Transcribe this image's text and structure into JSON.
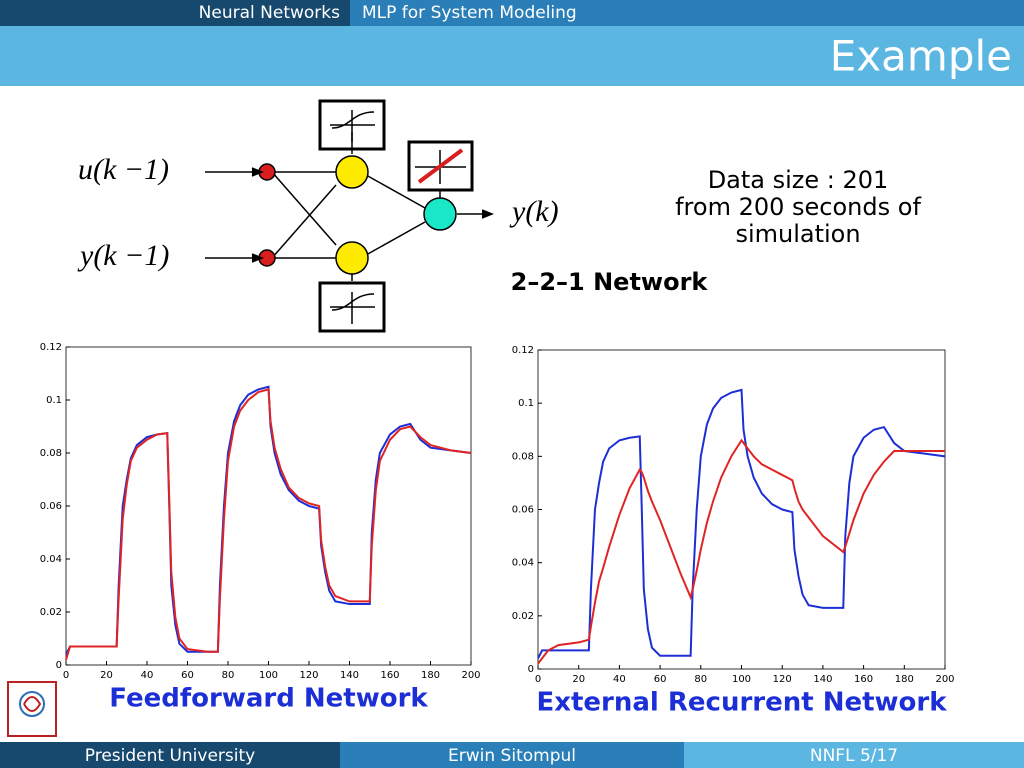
{
  "header": {
    "section": "Neural Networks",
    "topic": "MLP for System Modeling",
    "title": "Example"
  },
  "diagram": {
    "input_1": "u(k −1)",
    "input_2": "y(k −1)",
    "output": "y(k)",
    "network": "2–2–1 Network"
  },
  "notes": [
    "Data size : 201",
    "from 200 seconds of",
    "simulation"
  ],
  "footer": {
    "left": "President University",
    "center": "Erwin Sitompul",
    "right": "NNFL 5/17"
  },
  "chart_data": [
    {
      "type": "line",
      "title": "Feedforward Network",
      "x": [
        0,
        2,
        5,
        10,
        20,
        25,
        26,
        28,
        30,
        32,
        35,
        40,
        45,
        50,
        51,
        52,
        54,
        56,
        60,
        70,
        75,
        76,
        78,
        80,
        83,
        86,
        90,
        95,
        100,
        101,
        103,
        106,
        110,
        115,
        120,
        125,
        126,
        128,
        130,
        133,
        140,
        150,
        151,
        153,
        155,
        160,
        165,
        170,
        175,
        180,
        190,
        200
      ],
      "series": [
        {
          "color": "#1c2fd6",
          "values": [
            0.004,
            0.007,
            0.007,
            0.007,
            0.007,
            0.007,
            0.03,
            0.06,
            0.07,
            0.078,
            0.083,
            0.086,
            0.087,
            0.0875,
            0.06,
            0.03,
            0.015,
            0.008,
            0.005,
            0.005,
            0.005,
            0.03,
            0.06,
            0.08,
            0.092,
            0.098,
            0.102,
            0.104,
            0.105,
            0.09,
            0.08,
            0.072,
            0.066,
            0.062,
            0.06,
            0.059,
            0.045,
            0.035,
            0.028,
            0.024,
            0.023,
            0.023,
            0.05,
            0.07,
            0.08,
            0.087,
            0.09,
            0.091,
            0.085,
            0.082,
            0.081,
            0.08
          ]
        },
        {
          "color": "#e02424",
          "values": [
            0.002,
            0.007,
            0.007,
            0.007,
            0.007,
            0.007,
            0.025,
            0.055,
            0.068,
            0.077,
            0.082,
            0.085,
            0.087,
            0.0875,
            0.062,
            0.035,
            0.018,
            0.01,
            0.006,
            0.005,
            0.005,
            0.025,
            0.055,
            0.077,
            0.09,
            0.096,
            0.1,
            0.103,
            0.104,
            0.092,
            0.082,
            0.074,
            0.067,
            0.063,
            0.061,
            0.06,
            0.047,
            0.037,
            0.03,
            0.026,
            0.024,
            0.024,
            0.045,
            0.066,
            0.077,
            0.085,
            0.089,
            0.09,
            0.086,
            0.083,
            0.081,
            0.08
          ]
        }
      ],
      "xlim": [
        0,
        200
      ],
      "xticks": [
        0,
        20,
        40,
        60,
        80,
        100,
        120,
        140,
        160,
        180,
        200
      ],
      "ylim": [
        0,
        0.12
      ],
      "yticks": [
        0,
        0.02,
        0.04,
        0.06,
        0.08,
        0.1,
        0.12
      ]
    },
    {
      "type": "line",
      "title": "External Recurrent Network",
      "x": [
        0,
        2,
        5,
        10,
        20,
        25,
        26,
        28,
        30,
        32,
        35,
        40,
        45,
        50,
        51,
        52,
        54,
        56,
        60,
        70,
        75,
        76,
        78,
        80,
        83,
        86,
        90,
        95,
        100,
        101,
        103,
        106,
        110,
        115,
        120,
        125,
        126,
        128,
        130,
        133,
        140,
        150,
        151,
        153,
        155,
        160,
        165,
        170,
        175,
        180,
        190,
        200
      ],
      "series": [
        {
          "color": "#1c2fd6",
          "values": [
            0.004,
            0.007,
            0.007,
            0.007,
            0.007,
            0.007,
            0.03,
            0.06,
            0.07,
            0.078,
            0.083,
            0.086,
            0.087,
            0.0875,
            0.06,
            0.03,
            0.015,
            0.008,
            0.005,
            0.005,
            0.005,
            0.03,
            0.06,
            0.08,
            0.092,
            0.098,
            0.102,
            0.104,
            0.105,
            0.09,
            0.08,
            0.072,
            0.066,
            0.062,
            0.06,
            0.059,
            0.045,
            0.035,
            0.028,
            0.024,
            0.023,
            0.023,
            0.05,
            0.07,
            0.08,
            0.087,
            0.09,
            0.091,
            0.085,
            0.082,
            0.081,
            0.08
          ]
        },
        {
          "color": "#e02424",
          "values": [
            0.002,
            0.004,
            0.007,
            0.009,
            0.01,
            0.011,
            0.016,
            0.025,
            0.033,
            0.038,
            0.046,
            0.058,
            0.068,
            0.075,
            0.074,
            0.072,
            0.067,
            0.063,
            0.056,
            0.036,
            0.027,
            0.03,
            0.037,
            0.045,
            0.055,
            0.063,
            0.072,
            0.08,
            0.086,
            0.085,
            0.083,
            0.08,
            0.077,
            0.075,
            0.073,
            0.071,
            0.068,
            0.063,
            0.06,
            0.057,
            0.05,
            0.044,
            0.046,
            0.051,
            0.056,
            0.066,
            0.073,
            0.078,
            0.082,
            0.082,
            0.082,
            0.082
          ]
        }
      ],
      "xlim": [
        0,
        200
      ],
      "xticks": [
        0,
        20,
        40,
        60,
        80,
        100,
        120,
        140,
        160,
        180,
        200
      ],
      "ylim": [
        0,
        0.12
      ],
      "yticks": [
        0,
        0.02,
        0.04,
        0.06,
        0.08,
        0.1,
        0.12
      ]
    }
  ]
}
